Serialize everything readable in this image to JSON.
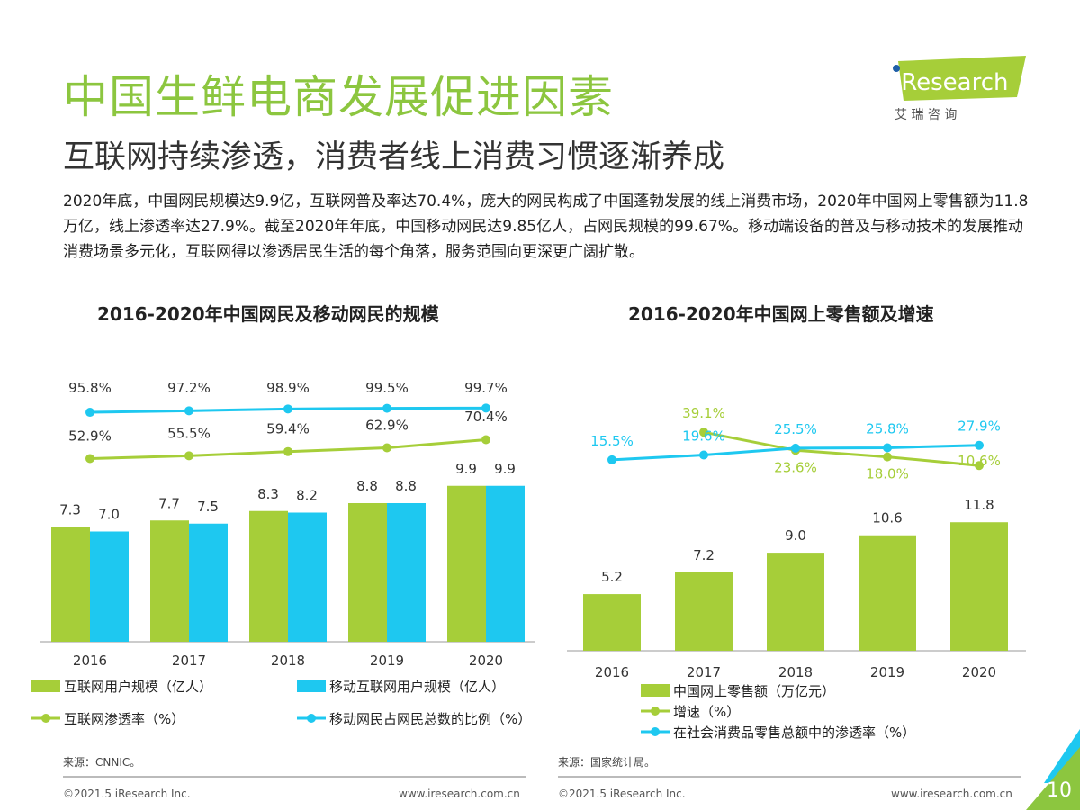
{
  "header": {
    "title": "中国生鲜电商发展促进因素",
    "subtitle": "互联网持续渗透，消费者线上消费习惯逐渐养成",
    "logo_text": "iResearch",
    "logo_cn": "艾 瑞 咨 询"
  },
  "body_text": "2020年底，中国网民规模达9.9亿，互联网普及率达70.4%，庞大的网民构成了中国蓬勃发展的线上消费市场，2020年中国网上零售额为11.8万亿，线上渗透率达27.9%。截至2020年年底，中国移动网民达9.85亿人，占网民规模的99.67%。移动端设备的普及与移动技术的发展推动消费场景多元化，互联网得以渗透居民生活的每个角落，服务范围向更深更广阔扩散。",
  "colors": {
    "green": "#a6ce39",
    "blue": "#1ec8f0",
    "title_green": "#8cc63f"
  },
  "chart_data": [
    {
      "type": "bar+line",
      "title": "2016-2020年中国网民及移动网民的规模",
      "categories": [
        "2016",
        "2017",
        "2018",
        "2019",
        "2020"
      ],
      "series": [
        {
          "name": "互联网用户规模（亿人）",
          "kind": "bar",
          "color": "#a6ce39",
          "values": [
            7.3,
            7.7,
            8.3,
            8.8,
            9.9
          ],
          "labels": [
            "7.3",
            "7.7",
            "8.3",
            "8.8",
            "9.9"
          ]
        },
        {
          "name": "移动互联网用户规模（亿人）",
          "kind": "bar",
          "color": "#1ec8f0",
          "values": [
            7.0,
            7.5,
            8.2,
            8.8,
            9.9
          ],
          "labels": [
            "7.0",
            "7.5",
            "8.2",
            "8.8",
            "9.9"
          ]
        },
        {
          "name": "互联网渗透率（%）",
          "kind": "line",
          "color": "#a6ce39",
          "values": [
            52.9,
            55.5,
            59.4,
            62.9,
            70.4
          ],
          "labels": [
            "52.9%",
            "55.5%",
            "59.4%",
            "62.9%",
            "70.4%"
          ]
        },
        {
          "name": "移动网民占网民总数的比例（%）",
          "kind": "line",
          "color": "#1ec8f0",
          "values": [
            95.8,
            97.2,
            98.9,
            99.5,
            99.7
          ],
          "labels": [
            "95.8%",
            "97.2%",
            "98.9%",
            "99.5%",
            "99.7%"
          ]
        }
      ],
      "legend": "bottom",
      "source": "来源：CNNIC。"
    },
    {
      "type": "bar+line",
      "title": "2016-2020年中国网上零售额及增速",
      "categories": [
        "2016",
        "2017",
        "2018",
        "2019",
        "2020"
      ],
      "series": [
        {
          "name": "中国网上零售额（万亿元）",
          "kind": "bar",
          "color": "#a6ce39",
          "values": [
            5.2,
            7.2,
            9.0,
            10.6,
            11.8
          ],
          "labels": [
            "5.2",
            "7.2",
            "9.0",
            "10.6",
            "11.8"
          ]
        },
        {
          "name": "增速（%）",
          "kind": "line",
          "color": "#a6ce39",
          "values": [
            null,
            39.1,
            23.6,
            18.0,
            10.6
          ],
          "labels": [
            "",
            "39.1%",
            "23.6%",
            "18.0%",
            "10.6%"
          ]
        },
        {
          "name": "在社会消费品零售总额中的渗透率（%）",
          "kind": "line",
          "color": "#1ec8f0",
          "values": [
            15.5,
            19.6,
            25.5,
            25.8,
            27.9
          ],
          "labels": [
            "15.5%",
            "19.6%",
            "25.5%",
            "25.8%",
            "27.9%"
          ]
        }
      ],
      "legend": "bottom",
      "source": "来源：国家统计局。"
    }
  ],
  "footer": {
    "copyright_left": "©2021.5 iResearch Inc.",
    "url_left": "www.iresearch.com.cn",
    "copyright_right": "©2021.5 iResearch Inc.",
    "url_right": "www.iresearch.com.cn",
    "page": "10"
  }
}
